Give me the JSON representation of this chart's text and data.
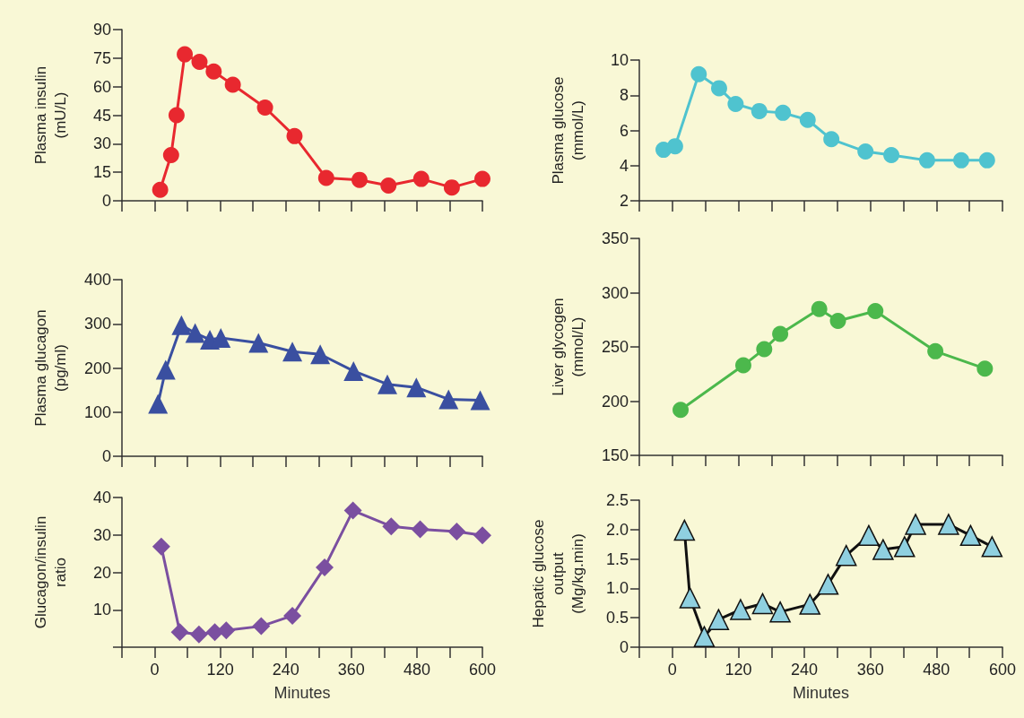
{
  "chart_data": [
    {
      "type": "line",
      "ylabel": "Plasma insulin\n(mU/L)",
      "marker": "circle",
      "tick_labels": "y",
      "xlim": [
        -60,
        600
      ],
      "xticks": [
        {
          "value": -60,
          "label": null
        },
        {
          "value": 0,
          "label": null
        },
        {
          "value": 60,
          "label": null
        },
        {
          "value": 120,
          "label": null
        },
        {
          "value": 180,
          "label": null
        },
        {
          "value": 240,
          "label": null
        },
        {
          "value": 300,
          "label": null
        },
        {
          "value": 360,
          "label": null
        },
        {
          "value": 420,
          "label": null
        },
        {
          "value": 480,
          "label": null
        },
        {
          "value": 540,
          "label": null
        },
        {
          "value": 600,
          "label": null
        }
      ],
      "ylim": [
        0,
        90
      ],
      "yticks": [
        0,
        15,
        30,
        45,
        60,
        75,
        90
      ],
      "series": [
        {
          "color": "#e8282f",
          "x": [
            10,
            30,
            40,
            55,
            82,
            108,
            143,
            202,
            256,
            314,
            375,
            428,
            488,
            544,
            600
          ],
          "values": [
            5.8,
            24,
            45,
            77,
            73,
            68,
            61,
            49,
            34,
            12,
            11,
            8,
            11.5,
            7,
            11.5
          ]
        }
      ]
    },
    {
      "type": "line",
      "ylabel": "Plasma glucose\n(mmol/L)",
      "marker": "circle",
      "tick_labels": "y",
      "xlim": [
        -60,
        600
      ],
      "xticks": [
        {
          "value": -60,
          "label": null
        },
        {
          "value": 0,
          "label": null
        },
        {
          "value": 60,
          "label": null
        },
        {
          "value": 120,
          "label": null
        },
        {
          "value": 180,
          "label": null
        },
        {
          "value": 240,
          "label": null
        },
        {
          "value": 300,
          "label": null
        },
        {
          "value": 360,
          "label": null
        },
        {
          "value": 420,
          "label": null
        },
        {
          "value": 480,
          "label": null
        },
        {
          "value": 540,
          "label": null
        },
        {
          "value": 600,
          "label": null
        }
      ],
      "ylim": [
        2,
        10
      ],
      "yticks": [
        2,
        4,
        6,
        8,
        10
      ],
      "series": [
        {
          "color": "#4fc3cf",
          "x": [
            -16,
            5,
            48,
            85,
            115,
            158,
            201,
            246,
            289,
            351,
            398,
            463,
            525,
            572
          ],
          "values": [
            4.9,
            5.1,
            9.2,
            8.4,
            7.5,
            7.1,
            7.0,
            6.6,
            5.5,
            4.8,
            4.6,
            4.3,
            4.3,
            4.3
          ]
        }
      ]
    },
    {
      "type": "line",
      "ylabel": "Plasma glucagon\n(pg/ml)",
      "marker": "triangle",
      "tick_labels": "y",
      "xlim": [
        -60,
        600
      ],
      "xticks": [
        {
          "value": -60,
          "label": null
        },
        {
          "value": 0,
          "label": null
        },
        {
          "value": 60,
          "label": null
        },
        {
          "value": 120,
          "label": null
        },
        {
          "value": 180,
          "label": null
        },
        {
          "value": 240,
          "label": null
        },
        {
          "value": 300,
          "label": null
        },
        {
          "value": 360,
          "label": null
        },
        {
          "value": 420,
          "label": null
        },
        {
          "value": 480,
          "label": null
        },
        {
          "value": 540,
          "label": null
        },
        {
          "value": 600,
          "label": null
        }
      ],
      "ylim": [
        0,
        400
      ],
      "yticks": [
        0,
        100,
        200,
        300,
        400
      ],
      "series": [
        {
          "color": "#3a4fa0",
          "x": [
            6,
            20,
            49,
            74,
            101,
            121,
            190,
            252,
            303,
            364,
            426,
            479,
            538,
            596
          ],
          "values": [
            119,
            196,
            297,
            279,
            264,
            268,
            257,
            237,
            231,
            193,
            163,
            156,
            129,
            127
          ]
        }
      ]
    },
    {
      "type": "line",
      "ylabel": "Liver glycogen\n(mmol/L)",
      "marker": "circle",
      "tick_labels": "y",
      "xlim": [
        -60,
        600
      ],
      "xticks": [
        {
          "value": -60,
          "label": null
        },
        {
          "value": 0,
          "label": null
        },
        {
          "value": 60,
          "label": null
        },
        {
          "value": 120,
          "label": null
        },
        {
          "value": 180,
          "label": null
        },
        {
          "value": 240,
          "label": null
        },
        {
          "value": 300,
          "label": null
        },
        {
          "value": 360,
          "label": null
        },
        {
          "value": 420,
          "label": null
        },
        {
          "value": 480,
          "label": null
        },
        {
          "value": 540,
          "label": null
        },
        {
          "value": 600,
          "label": null
        }
      ],
      "ylim": [
        150,
        350
      ],
      "yticks": [
        150,
        200,
        250,
        300,
        350
      ],
      "series": [
        {
          "color": "#4cb84c",
          "x": [
            15,
            129,
            167,
            196,
            267,
            301,
            369,
            478,
            568
          ],
          "values": [
            192,
            233,
            248,
            262,
            285,
            274,
            283,
            246,
            230
          ]
        }
      ]
    },
    {
      "type": "line",
      "ylabel": "Glucagon/insulin\nratio",
      "xlabel": "Minutes",
      "marker": "diamond",
      "xlim": [
        -60,
        600
      ],
      "xticks": [
        {
          "value": -60,
          "label": null
        },
        0,
        {
          "value": 60,
          "label": null
        },
        120,
        {
          "value": 180,
          "label": null
        },
        240,
        {
          "value": 300,
          "label": null
        },
        360,
        {
          "value": 420,
          "label": null
        },
        480,
        {
          "value": 540,
          "label": null
        },
        600
      ],
      "ylim": [
        0,
        40
      ],
      "yticks": [
        {
          "value": 0,
          "label": null
        },
        10,
        20,
        30,
        40
      ],
      "series": [
        {
          "color": "#7b4fa0",
          "x": [
            12,
            46,
            81,
            110,
            131,
            195,
            252,
            311,
            363,
            433,
            486,
            553,
            600
          ],
          "values": [
            26.9,
            4.0,
            3.4,
            4.0,
            4.5,
            5.6,
            8.4,
            21.3,
            36.5,
            32.3,
            31.5,
            30.9,
            29.9
          ]
        }
      ]
    },
    {
      "type": "line",
      "ylabel": "Hepatic glucose\noutput\n(Mg/kg.min)",
      "xlabel": "Minutes",
      "marker": "triangle",
      "xlim": [
        -60,
        600
      ],
      "xticks": [
        {
          "value": -60,
          "label": null
        },
        0,
        {
          "value": 60,
          "label": null
        },
        120,
        {
          "value": 180,
          "label": null
        },
        240,
        {
          "value": 300,
          "label": null
        },
        360,
        {
          "value": 420,
          "label": null
        },
        480,
        {
          "value": 540,
          "label": null
        },
        600
      ],
      "ylim": [
        0,
        2.5
      ],
      "yticks": [
        0,
        0.5,
        {
          "value": 1,
          "label": "1.0"
        },
        1.5,
        {
          "value": 2,
          "label": "2.0"
        },
        2.5
      ],
      "series": [
        {
          "color": "#111111",
          "colors": [
            "#8fd0e0",
            "#8fd0e0",
            "#8fd0e0",
            "#8fd0e0",
            "#8fd0e0",
            "#8fd0e0",
            "#8fd0e0",
            "#8fd0e0",
            "#8fd0e0",
            "#8fd0e0",
            "#8fd0e0",
            "#8fd0e0",
            "#8fd0e0",
            "#8fd0e0",
            "#8fd0e0",
            "#8fd0e0",
            "#8fd0e0"
          ],
          "x": [
            22,
            32,
            58,
            84,
            124,
            164,
            196,
            250,
            283,
            316,
            357,
            383,
            422,
            442,
            502,
            542,
            581
          ],
          "values": [
            1.99,
            0.84,
            0.18,
            0.47,
            0.64,
            0.74,
            0.6,
            0.73,
            1.07,
            1.56,
            1.9,
            1.66,
            1.71,
            2.09,
            2.09,
            1.9,
            1.71
          ]
        }
      ]
    }
  ]
}
